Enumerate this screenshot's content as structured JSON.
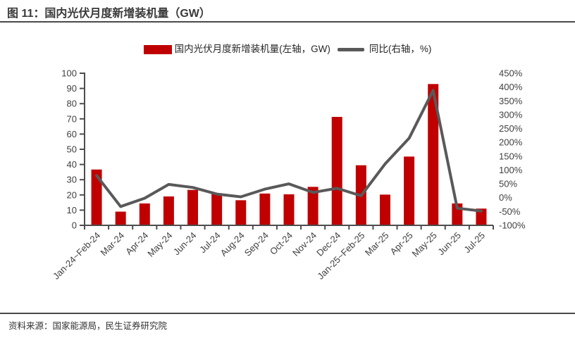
{
  "figure": {
    "title": "图 11：国内光伏月度新增装机量（GW）",
    "source": "资料来源：国家能源局，民生证券研究院"
  },
  "legend": {
    "bar_label": "国内光伏月度新增装机量(左轴，GW)",
    "line_label": "同比(右轴，%)"
  },
  "colors": {
    "bar": "#C00000",
    "line": "#595959",
    "axis": "#4d4d4d",
    "tick_text": "#404040",
    "title_text": "#3a3a3a"
  },
  "chart_data": {
    "type": "bar",
    "categories": [
      "Jan-24~Feb-24",
      "Mar-24",
      "Apr-24",
      "May-24",
      "Jun-24",
      "Jul-24",
      "Aug-24",
      "Sep-24",
      "Oct-24",
      "Nov-24",
      "Dec-24",
      "Jan-25~Feb-25",
      "Mar-25",
      "Apr-25",
      "May-25",
      "Jun-25",
      "Jul-25"
    ],
    "series": [
      {
        "name": "国内光伏月度新增装机量(左轴，GW)",
        "type": "bar",
        "axis": "left",
        "values": [
          36.7,
          9.0,
          14.4,
          19.0,
          23.3,
          21.1,
          16.5,
          20.9,
          20.4,
          25.3,
          71.3,
          39.5,
          20.2,
          45.2,
          92.9,
          14.4,
          11.0
        ]
      },
      {
        "name": "同比(右轴，%)",
        "type": "line",
        "axis": "right",
        "values": [
          80,
          -32,
          -2,
          48,
          37,
          13,
          3,
          31,
          50,
          19,
          34,
          7,
          122,
          215,
          388,
          -38,
          -48
        ]
      }
    ],
    "title": "国内光伏月度新增装机量（GW）",
    "xlabel": "",
    "ylabel_left": "GW",
    "ylabel_right": "%",
    "left_axis": {
      "min": 0,
      "max": 100,
      "step": 10,
      "labels": [
        "100",
        "90",
        "80",
        "70",
        "60",
        "50",
        "40",
        "30",
        "20",
        "10",
        "0"
      ]
    },
    "right_axis": {
      "min": -100,
      "max": 450,
      "step": 50,
      "labels": [
        "450%",
        "400%",
        "350%",
        "300%",
        "250%",
        "200%",
        "150%",
        "100%",
        "50%",
        "0%",
        "-50%",
        "-100%"
      ]
    },
    "grid": false,
    "legend_position": "top"
  }
}
